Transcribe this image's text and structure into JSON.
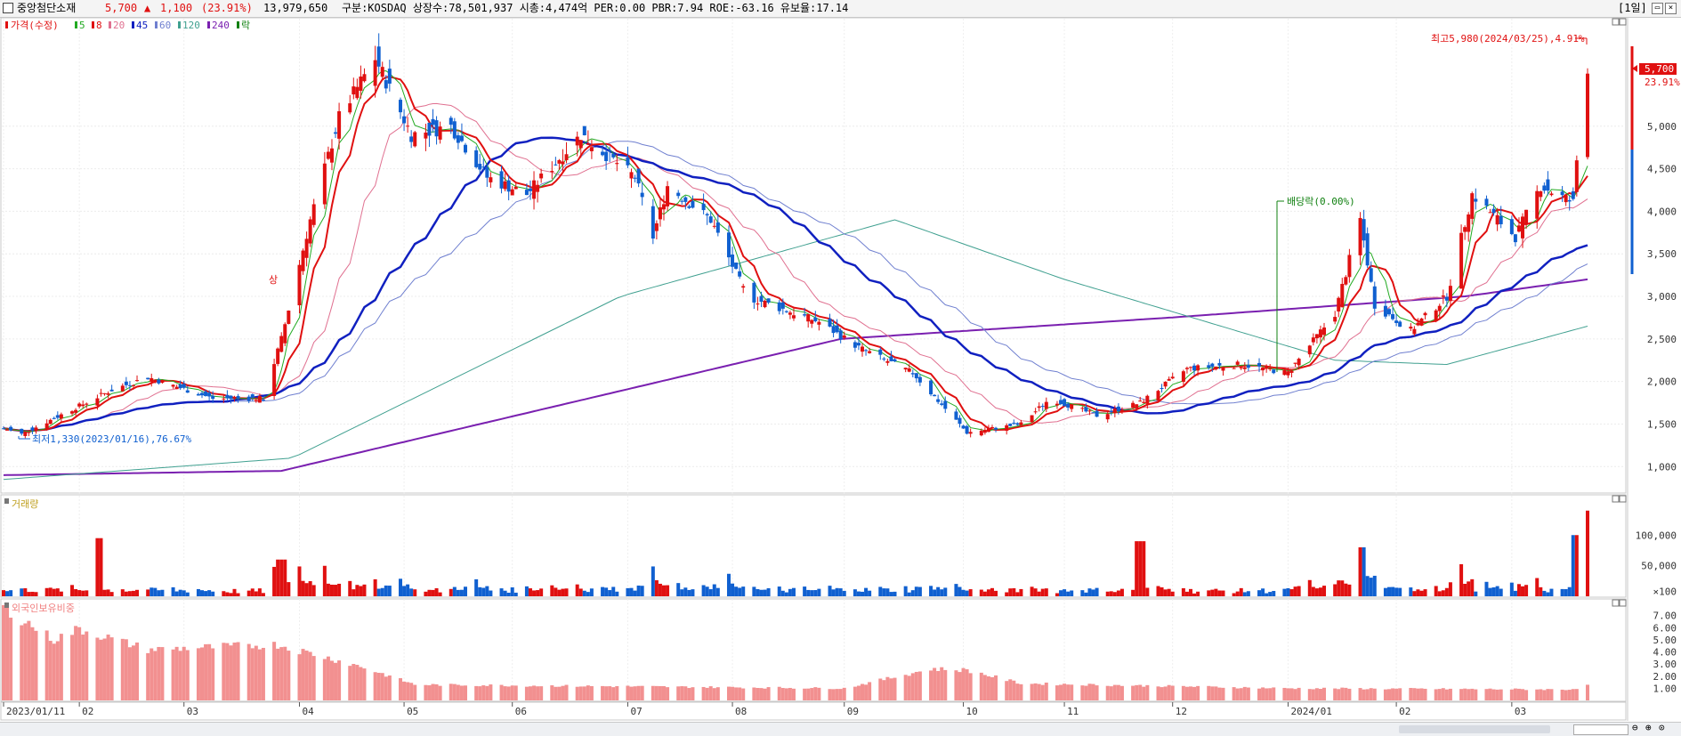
{
  "header": {
    "stock_name": "중앙첨단소재",
    "price": "5,700",
    "change_arrow": "▲",
    "change": "1,100",
    "change_pct": "(23.91%)",
    "volume": "13,979,650",
    "info": "구분:KOSDAQ 상장수:78,501,937 시총:4,474억 PER:0.00 PBR:7.94 ROE:-63.16 유보율:17.14",
    "period": "[1일]"
  },
  "legend": {
    "price_label": "가격(수정)",
    "ma_items": [
      {
        "label": "5",
        "color": "#22aa22"
      },
      {
        "label": "8",
        "color": "#e01010"
      },
      {
        "label": "20",
        "color": "#e07090"
      },
      {
        "label": "45",
        "color": "#1020c0"
      },
      {
        "label": "60",
        "color": "#7080d0"
      },
      {
        "label": "120",
        "color": "#40a090"
      },
      {
        "label": "240",
        "color": "#7a20b0"
      },
      {
        "label": "락",
        "color": "#108010"
      }
    ]
  },
  "annotations": {
    "high_label": "최고5,980(2024/03/25),4.91%",
    "low_label": "최저1,330(2023/01/16),76.67%",
    "dividend_label": "배당락(0.00%)",
    "limit_up_label": "상",
    "price_tag": "5,700",
    "pct_tag": "23.91%"
  },
  "volume_panel": {
    "title": "거래량",
    "ticks": [
      "100,000",
      "50,000",
      "×100"
    ]
  },
  "foreign_panel": {
    "title": "외국인보유비중",
    "ticks": [
      "7.00",
      "6.00",
      "5.00",
      "4.00",
      "3.00",
      "2.00",
      "1.00"
    ]
  },
  "price_ticks": [
    "5,000",
    "4,500",
    "4,000",
    "3,500",
    "3,000",
    "2,500",
    "2,000",
    "1,500",
    "1,000"
  ],
  "x_ticks": [
    "2023/01/11",
    "02",
    "03",
    "04",
    "05",
    "06",
    "07",
    "08",
    "09",
    "10",
    "11",
    "12",
    "2024/01",
    "02",
    "03"
  ],
  "colors": {
    "up": "#e01010",
    "down": "#1060d0",
    "ma5": "#22aa22",
    "ma8": "#e01010",
    "ma20": "#e07090",
    "ma45": "#1020c0",
    "ma60": "#7080d0",
    "ma120": "#40a090",
    "ma240": "#7a20b0",
    "foreign": "#f29090"
  },
  "chart_data": {
    "type": "candlestick",
    "x_range": [
      "2023/01/11",
      "2024/03/25"
    ],
    "ylim": [
      700,
      6200
    ],
    "price_anchors": [
      {
        "date": "2023/01/11",
        "close": 1450
      },
      {
        "date": "2023/01/16",
        "close": 1380
      },
      {
        "date": "2023/02/10",
        "close": 1900
      },
      {
        "date": "2023/02/20",
        "close": 2050
      },
      {
        "date": "2023/03/10",
        "close": 1800
      },
      {
        "date": "2023/03/24",
        "close": 1800
      },
      {
        "date": "2023/03/29",
        "close": 2500
      },
      {
        "date": "2023/04/06",
        "close": 3900
      },
      {
        "date": "2023/04/14",
        "close": 5100
      },
      {
        "date": "2023/04/24",
        "close": 5800
      },
      {
        "date": "2023/05/04",
        "close": 4900
      },
      {
        "date": "2023/05/15",
        "close": 5000
      },
      {
        "date": "2023/05/25",
        "close": 4400
      },
      {
        "date": "2023/06/05",
        "close": 4200
      },
      {
        "date": "2023/06/20",
        "close": 4900
      },
      {
        "date": "2023/07/05",
        "close": 4400
      },
      {
        "date": "2023/07/10",
        "close": 3700
      },
      {
        "date": "2023/07/14",
        "close": 4300
      },
      {
        "date": "2023/07/26",
        "close": 3900
      },
      {
        "date": "2023/08/05",
        "close": 3000
      },
      {
        "date": "2023/08/25",
        "close": 2700
      },
      {
        "date": "2023/09/05",
        "close": 2400
      },
      {
        "date": "2023/09/20",
        "close": 2100
      },
      {
        "date": "2023/10/05",
        "close": 1400
      },
      {
        "date": "2023/10/20",
        "close": 1500
      },
      {
        "date": "2023/10/28",
        "close": 1800
      },
      {
        "date": "2023/11/10",
        "close": 1600
      },
      {
        "date": "2023/11/22",
        "close": 1750
      },
      {
        "date": "2023/12/05",
        "close": 2150
      },
      {
        "date": "2023/12/20",
        "close": 2200
      },
      {
        "date": "2024/01/02",
        "close": 2100
      },
      {
        "date": "2024/01/15",
        "close": 2800
      },
      {
        "date": "2024/01/22",
        "close": 3900
      },
      {
        "date": "2024/01/26",
        "close": 2900
      },
      {
        "date": "2024/02/05",
        "close": 2600
      },
      {
        "date": "2024/02/15",
        "close": 3000
      },
      {
        "date": "2024/02/22",
        "close": 4200
      },
      {
        "date": "2024/03/05",
        "close": 3700
      },
      {
        "date": "2024/03/12",
        "close": 4300
      },
      {
        "date": "2024/03/21",
        "close": 4100
      },
      {
        "date": "2024/03/22",
        "close": 4600
      },
      {
        "date": "2024/03/25",
        "close": 5700
      }
    ],
    "ma240_anchors": [
      {
        "date": "2023/01/11",
        "value": 900
      },
      {
        "date": "2023/03/29",
        "value": 950
      },
      {
        "date": "2023/08/31",
        "value": 2500
      },
      {
        "date": "2023/11/30",
        "value": 2750
      },
      {
        "date": "2024/02/20",
        "value": 3000
      },
      {
        "date": "2024/03/25",
        "value": 3200
      }
    ],
    "ma120_anchors": [
      {
        "date": "2023/01/11",
        "value": 850
      },
      {
        "date": "2023/04/01",
        "value": 1100
      },
      {
        "date": "2023/07/01",
        "value": 3000
      },
      {
        "date": "2023/09/15",
        "value": 3900
      },
      {
        "date": "2023/11/01",
        "value": 3200
      },
      {
        "date": "2024/01/15",
        "value": 2250
      },
      {
        "date": "2024/02/15",
        "value": 2200
      },
      {
        "date": "2024/03/25",
        "value": 2650
      }
    ],
    "volume_ylim_x100": [
      0,
      160000
    ],
    "foreign_ratio_ylim": [
      0,
      8
    ],
    "highlight_volume_x100": [
      {
        "date": "2023/02/06",
        "value": 95000
      },
      {
        "date": "2023/03/29",
        "value": 60000
      },
      {
        "date": "2023/11/22",
        "value": 90000
      },
      {
        "date": "2024/01/22",
        "value": 80000
      },
      {
        "date": "2024/03/22",
        "value": 100000
      },
      {
        "date": "2024/03/25",
        "value": 140000
      }
    ]
  }
}
